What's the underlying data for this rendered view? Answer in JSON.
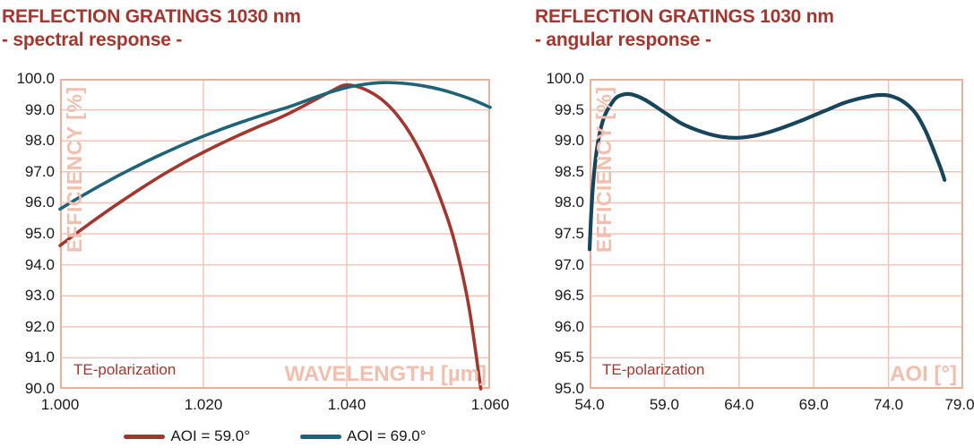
{
  "colors": {
    "accent_red": "#A23730",
    "curve_red": "#A23730",
    "curve_teal": "#1E6478",
    "curve_navy": "#17455A",
    "grid_pink": "#F3C4B6",
    "frame_pink": "#EBAF9D",
    "watermark_pink": "#F2BFAF",
    "tick_text": "#191919"
  },
  "charts": [
    {
      "title": "REFLECTION GRATINGS 1030 nm",
      "subtitle": "- spectral response -",
      "y_axis_label": "EFFICIENCY [%]",
      "x_axis_label": "WAVELENGTH [µm]",
      "annotation": "TE-polarization"
    },
    {
      "title": "REFLECTION GRATINGS 1030 nm",
      "subtitle": "- angular response -",
      "y_axis_label": "EFFICIENCY [%]",
      "x_axis_label": "AOI [°]",
      "annotation": "TE-polarization"
    }
  ],
  "chart_data": [
    {
      "type": "line",
      "title": "REFLECTION GRATINGS 1030 nm - spectral response -",
      "xlabel": "WAVELENGTH [µm]",
      "ylabel": "EFFICIENCY [%]",
      "xlim": [
        1.0,
        1.06
      ],
      "ylim": [
        90.0,
        100.0
      ],
      "x_tick_labels": [
        "1.000",
        "1.020",
        "1.040",
        "1.060"
      ],
      "y_tick_labels": [
        "100.0",
        "99.0",
        "98.0",
        "97.0",
        "96.0",
        "95.0",
        "94.0",
        "93.0",
        "92.0",
        "91.0",
        "90.0"
      ],
      "grid": true,
      "legend_position": "bottom",
      "annotation": "TE-polarization",
      "series": [
        {
          "name": "AOI = 59.0°",
          "color": "#A23730",
          "width": 3.6,
          "points": [
            [
              1.0,
              94.62
            ],
            [
              1.002,
              94.97
            ],
            [
              1.004,
              95.31
            ],
            [
              1.006,
              95.64
            ],
            [
              1.008,
              95.96
            ],
            [
              1.01,
              96.27
            ],
            [
              1.012,
              96.57
            ],
            [
              1.014,
              96.86
            ],
            [
              1.016,
              97.13
            ],
            [
              1.018,
              97.39
            ],
            [
              1.02,
              97.63
            ],
            [
              1.022,
              97.86
            ],
            [
              1.024,
              98.08
            ],
            [
              1.026,
              98.29
            ],
            [
              1.028,
              98.49
            ],
            [
              1.03,
              98.68
            ],
            [
              1.032,
              98.89
            ],
            [
              1.034,
              99.13
            ],
            [
              1.036,
              99.38
            ],
            [
              1.038,
              99.62
            ],
            [
              1.0395,
              99.79
            ],
            [
              1.041,
              99.78
            ],
            [
              1.043,
              99.61
            ],
            [
              1.045,
              99.31
            ],
            [
              1.047,
              98.84
            ],
            [
              1.049,
              98.18
            ],
            [
              1.051,
              97.3
            ],
            [
              1.053,
              96.18
            ],
            [
              1.055,
              94.78
            ],
            [
              1.057,
              92.7
            ],
            [
              1.0587,
              90.0
            ]
          ]
        },
        {
          "name": "AOI = 69.0°",
          "color": "#1E6478",
          "width": 3.6,
          "points": [
            [
              1.0,
              95.8
            ],
            [
              1.002,
              96.08
            ],
            [
              1.004,
              96.35
            ],
            [
              1.006,
              96.61
            ],
            [
              1.008,
              96.86
            ],
            [
              1.01,
              97.1
            ],
            [
              1.012,
              97.33
            ],
            [
              1.014,
              97.55
            ],
            [
              1.016,
              97.76
            ],
            [
              1.018,
              97.96
            ],
            [
              1.02,
              98.15
            ],
            [
              1.022,
              98.33
            ],
            [
              1.024,
              98.5
            ],
            [
              1.026,
              98.66
            ],
            [
              1.028,
              98.81
            ],
            [
              1.03,
              98.96
            ],
            [
              1.032,
              99.1
            ],
            [
              1.034,
              99.27
            ],
            [
              1.036,
              99.44
            ],
            [
              1.038,
              99.59
            ],
            [
              1.0395,
              99.69
            ],
            [
              1.041,
              99.77
            ],
            [
              1.043,
              99.84
            ],
            [
              1.045,
              99.88
            ],
            [
              1.047,
              99.87
            ],
            [
              1.049,
              99.83
            ],
            [
              1.051,
              99.76
            ],
            [
              1.053,
              99.66
            ],
            [
              1.055,
              99.53
            ],
            [
              1.0575,
              99.33
            ],
            [
              1.06,
              99.08
            ]
          ]
        }
      ]
    },
    {
      "type": "line",
      "title": "REFLECTION GRATINGS 1030 nm - angular response -",
      "xlabel": "AOI [°]",
      "ylabel": "EFFICIENCY [%]",
      "xlim": [
        54.0,
        79.0
      ],
      "ylim": [
        95.0,
        100.0
      ],
      "x_tick_labels": [
        "54.0",
        "59.0",
        "64.0",
        "69.0",
        "74.0",
        "79.0"
      ],
      "y_tick_labels": [
        "100.0",
        "99.5",
        "99.0",
        "98.5",
        "98.0",
        "97.5",
        "97.0",
        "96.5",
        "96.0",
        "95.5",
        "95.0"
      ],
      "grid": true,
      "legend_position": "none",
      "annotation": "TE-polarization",
      "series": [
        {
          "name": "TE-polarization",
          "color": "#17455A",
          "width": 4.2,
          "points": [
            [
              54.0,
              97.25
            ],
            [
              54.1,
              97.8
            ],
            [
              54.25,
              98.35
            ],
            [
              54.45,
              98.8
            ],
            [
              54.7,
              99.15
            ],
            [
              55.0,
              99.4
            ],
            [
              55.4,
              99.58
            ],
            [
              55.8,
              99.7
            ],
            [
              56.3,
              99.75
            ],
            [
              56.8,
              99.75
            ],
            [
              57.4,
              99.7
            ],
            [
              58.0,
              99.62
            ],
            [
              59.0,
              99.46
            ],
            [
              60.0,
              99.3
            ],
            [
              61.0,
              99.19
            ],
            [
              62.0,
              99.11
            ],
            [
              63.0,
              99.06
            ],
            [
              64.0,
              99.05
            ],
            [
              65.0,
              99.08
            ],
            [
              66.0,
              99.14
            ],
            [
              67.0,
              99.22
            ],
            [
              68.0,
              99.31
            ],
            [
              69.0,
              99.41
            ],
            [
              70.0,
              99.51
            ],
            [
              71.0,
              99.61
            ],
            [
              72.0,
              99.68
            ],
            [
              73.0,
              99.73
            ],
            [
              73.6,
              99.74
            ],
            [
              74.2,
              99.72
            ],
            [
              75.0,
              99.63
            ],
            [
              75.8,
              99.45
            ],
            [
              76.5,
              99.15
            ],
            [
              77.1,
              98.8
            ],
            [
              77.5,
              98.55
            ],
            [
              77.75,
              98.37
            ]
          ]
        }
      ]
    }
  ]
}
